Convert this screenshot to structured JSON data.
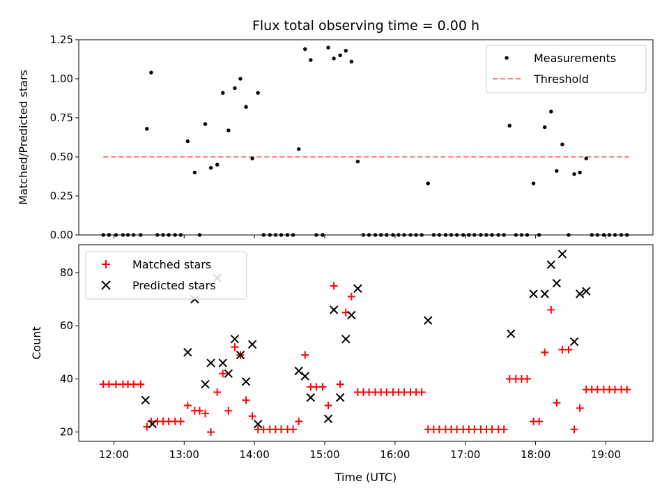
{
  "chart_data": [
    {
      "type": "scatter",
      "title": "Flux total observing time = 0.00 h",
      "xlabel": "",
      "ylabel": "Matched/Predicted stars",
      "xlim": [
        11.5,
        19.67
      ],
      "ylim": [
        0.0,
        1.25
      ],
      "yticks": [
        "0.00",
        "0.25",
        "0.50",
        "0.75",
        "1.00",
        "1.25"
      ],
      "ytick_values": [
        0,
        0.25,
        0.5,
        0.75,
        1.0,
        1.25
      ],
      "legend_position": "upper right",
      "threshold": {
        "name": "Threshold",
        "value": 0.5,
        "x_range": [
          11.85,
          19.33
        ],
        "color": "#ff7f7f"
      },
      "series": [
        {
          "name": "Measurements",
          "marker": "dot",
          "color": "#000000",
          "x": [
            11.85,
            11.93,
            12.03,
            12.13,
            12.2,
            12.28,
            12.38,
            12.47,
            12.53,
            12.62,
            12.7,
            12.78,
            12.87,
            12.95,
            13.05,
            13.15,
            13.22,
            13.3,
            13.38,
            13.47,
            13.55,
            13.63,
            13.72,
            13.8,
            13.88,
            13.97,
            14.05,
            14.13,
            14.22,
            14.3,
            14.38,
            14.47,
            14.55,
            14.63,
            14.72,
            14.8,
            14.88,
            14.97,
            15.05,
            15.13,
            15.22,
            15.3,
            15.38,
            15.47,
            15.55,
            15.63,
            15.72,
            15.8,
            15.88,
            15.97,
            16.05,
            16.13,
            16.22,
            16.3,
            16.38,
            16.47,
            16.55,
            16.63,
            16.72,
            16.8,
            16.88,
            16.97,
            17.05,
            17.13,
            17.22,
            17.3,
            17.38,
            17.47,
            17.55,
            17.63,
            17.72,
            17.8,
            17.88,
            17.97,
            18.05,
            18.13,
            18.22,
            18.3,
            18.38,
            18.47,
            18.55,
            18.63,
            18.72,
            18.8,
            18.88,
            18.97,
            19.05,
            19.13,
            19.22,
            19.3
          ],
          "y": [
            0,
            0,
            0,
            0,
            0,
            0,
            0,
            0.68,
            1.04,
            0,
            0,
            0,
            0,
            0,
            0.6,
            0.4,
            0,
            0.71,
            0.43,
            0.45,
            0.91,
            0.67,
            0.94,
            1.0,
            0.82,
            0.49,
            0.91,
            0,
            0,
            0,
            0,
            0,
            0,
            0.55,
            1.19,
            1.12,
            0,
            0,
            1.2,
            1.13,
            1.15,
            1.18,
            1.11,
            0.47,
            0,
            0,
            0,
            0,
            0,
            0,
            0,
            0,
            0,
            0,
            0,
            0.33,
            0,
            0,
            0,
            0,
            0,
            0,
            0,
            0,
            0,
            0,
            0,
            0,
            0,
            0.7,
            0,
            0,
            0,
            0.33,
            0,
            0.69,
            0.79,
            0.41,
            0.58,
            0,
            0.39,
            0.4,
            0.49,
            0,
            0,
            0,
            0,
            0,
            0,
            0
          ]
        }
      ]
    },
    {
      "type": "scatter",
      "title": "",
      "xlabel": "Time (UTC)",
      "ylabel": "Count",
      "xlim": [
        11.5,
        19.67
      ],
      "ylim": [
        16.5,
        90.5
      ],
      "yticks": [
        "20",
        "40",
        "60",
        "80"
      ],
      "ytick_values": [
        20,
        40,
        60,
        80
      ],
      "xticks": [
        "12:00",
        "13:00",
        "14:00",
        "15:00",
        "16:00",
        "17:00",
        "18:00",
        "19:00"
      ],
      "xtick_values": [
        12,
        13,
        14,
        15,
        16,
        17,
        18,
        19
      ],
      "legend_position": "upper left",
      "series": [
        {
          "name": "Matched stars",
          "marker": "plus",
          "color": "#ff0000",
          "x": [
            11.85,
            11.93,
            12.03,
            12.13,
            12.2,
            12.28,
            12.38,
            12.47,
            12.53,
            12.62,
            12.7,
            12.78,
            12.87,
            12.95,
            13.05,
            13.15,
            13.22,
            13.3,
            13.38,
            13.47,
            13.55,
            13.63,
            13.72,
            13.8,
            13.88,
            13.97,
            14.05,
            14.13,
            14.22,
            14.3,
            14.38,
            14.47,
            14.55,
            14.63,
            14.72,
            14.8,
            14.88,
            14.97,
            15.05,
            15.13,
            15.22,
            15.3,
            15.38,
            15.47,
            15.55,
            15.63,
            15.72,
            15.8,
            15.88,
            15.97,
            16.05,
            16.13,
            16.22,
            16.3,
            16.38,
            16.47,
            16.55,
            16.63,
            16.72,
            16.8,
            16.88,
            16.97,
            17.05,
            17.13,
            17.22,
            17.3,
            17.38,
            17.47,
            17.55,
            17.63,
            17.72,
            17.8,
            17.88,
            17.97,
            18.05,
            18.13,
            18.22,
            18.3,
            18.38,
            18.47,
            18.55,
            18.63,
            18.72,
            18.8,
            18.88,
            18.97,
            19.05,
            19.13,
            19.22,
            19.3
          ],
          "y": [
            38,
            38,
            38,
            38,
            38,
            38,
            38,
            22,
            24,
            24,
            24,
            24,
            24,
            24,
            30,
            28,
            28,
            27,
            20,
            35,
            42,
            28,
            52,
            49,
            32,
            26,
            21,
            21,
            21,
            21,
            21,
            21,
            21,
            24,
            49,
            37,
            37,
            37,
            30,
            75,
            38,
            65,
            71,
            35,
            35,
            35,
            35,
            35,
            35,
            35,
            35,
            35,
            35,
            35,
            35,
            21,
            21,
            21,
            21,
            21,
            21,
            21,
            21,
            21,
            21,
            21,
            21,
            21,
            21,
            40,
            40,
            40,
            40,
            24,
            24,
            50,
            66,
            31,
            51,
            51,
            21,
            29,
            36,
            36,
            36,
            36,
            36,
            36,
            36,
            36
          ]
        },
        {
          "name": "Predicted stars",
          "marker": "x",
          "color": "#000000",
          "x": [
            12.45,
            12.55,
            13.05,
            13.15,
            13.3,
            13.38,
            13.47,
            13.55,
            13.63,
            13.72,
            13.8,
            13.88,
            13.97,
            14.05,
            14.63,
            14.72,
            14.8,
            15.05,
            15.13,
            15.22,
            15.3,
            15.38,
            15.47,
            16.47,
            17.65,
            17.97,
            18.13,
            18.22,
            18.3,
            18.38,
            18.55,
            18.63,
            18.72
          ],
          "y": [
            32,
            23,
            50,
            70,
            38,
            46,
            78,
            46,
            42,
            55,
            49,
            39,
            53,
            23,
            43,
            41,
            33,
            25,
            66,
            33,
            55,
            64,
            74,
            62,
            57,
            72,
            72,
            83,
            76,
            87,
            54,
            72,
            73
          ]
        }
      ]
    }
  ]
}
